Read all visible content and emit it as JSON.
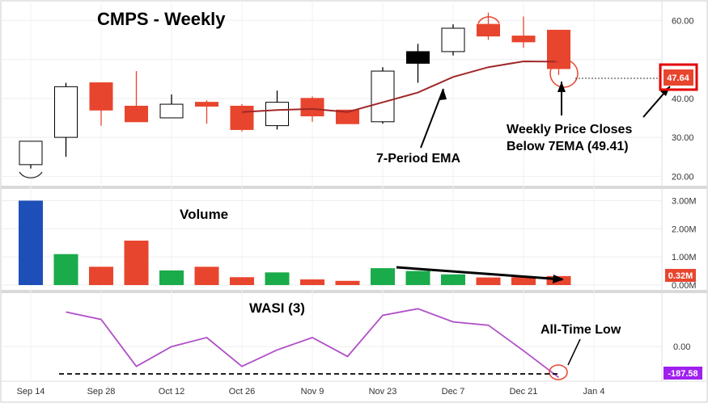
{
  "chart_data": {
    "type": "candlestick",
    "title": "CMPS - Weekly",
    "x_ticks": [
      "Sep 14",
      "Sep 28",
      "Oct 12",
      "Oct 26",
      "Nov 9",
      "Nov 23",
      "Dec 7",
      "Dec 21",
      "Jan 4"
    ],
    "price_panel": {
      "y_ticks": [
        "60.00",
        "40.00",
        "30.00",
        "20.00"
      ],
      "ylim": [
        18,
        64
      ],
      "candles": [
        {
          "date": "Sep 14",
          "open": 23,
          "high": 29,
          "low": 22,
          "close": 29
        },
        {
          "date": "Sep 21",
          "open": 30,
          "high": 44,
          "low": 25,
          "close": 43
        },
        {
          "date": "Sep 28",
          "open": 44,
          "high": 44,
          "low": 33,
          "close": 37
        },
        {
          "date": "Oct 5",
          "open": 38,
          "high": 47,
          "low": 34,
          "close": 34
        },
        {
          "date": "Oct 12",
          "open": 35,
          "high": 41,
          "low": 35,
          "close": 38.5
        },
        {
          "date": "Oct 19",
          "open": 39,
          "high": 39.5,
          "low": 33.5,
          "close": 38
        },
        {
          "date": "Oct 26",
          "open": 38,
          "high": 38.5,
          "low": 31.5,
          "close": 32
        },
        {
          "date": "Nov 2",
          "open": 33,
          "high": 42,
          "low": 32,
          "close": 39
        },
        {
          "date": "Nov 9",
          "open": 40,
          "high": 40.5,
          "low": 34,
          "close": 35.5
        },
        {
          "date": "Nov 16",
          "open": 37,
          "high": 37,
          "low": 33.5,
          "close": 33.5
        },
        {
          "date": "Nov 23",
          "open": 34,
          "high": 48,
          "low": 33.5,
          "close": 47
        },
        {
          "date": "Nov 30",
          "open": 49,
          "high": 54,
          "low": 44,
          "close": 52
        },
        {
          "date": "Dec 7",
          "open": 52,
          "high": 59,
          "low": 51,
          "close": 58
        },
        {
          "date": "Dec 14",
          "open": 59,
          "high": 62,
          "low": 55,
          "close": 56
        },
        {
          "date": "Dec 21",
          "open": 56,
          "high": 61,
          "low": 53,
          "close": 54.5
        },
        {
          "date": "Dec 28",
          "open": 57.5,
          "high": 57.5,
          "low": 46,
          "close": 47.64
        }
      ],
      "ema_label": "7-Period EMA",
      "ema": [
        null,
        null,
        null,
        null,
        null,
        null,
        36.5,
        37,
        37.3,
        36.5,
        39,
        41.5,
        45.5,
        48,
        49.5,
        49.41
      ],
      "last_price_badge": "47.64"
    },
    "volume_panel": {
      "title": "Volume",
      "y_ticks": [
        "3.00M",
        "2.00M",
        "1.00M",
        "0.00M"
      ],
      "ylim": [
        0,
        3.3
      ],
      "values": [
        3.0,
        1.1,
        0.65,
        1.58,
        0.52,
        0.65,
        0.28,
        0.45,
        0.2,
        0.15,
        0.6,
        0.5,
        0.38,
        0.27,
        0.28,
        0.32
      ],
      "colors": [
        "blue",
        "green",
        "red",
        "red",
        "green",
        "red",
        "red",
        "green",
        "red",
        "red",
        "green",
        "green",
        "green",
        "red",
        "red",
        "red"
      ],
      "last_badge": "0.32M"
    },
    "wasi_panel": {
      "title": "WASI (3)",
      "y_ticks": [
        "0.00"
      ],
      "ylim": [
        -200,
        310
      ],
      "values": [
        null,
        210,
        165,
        -120,
        0,
        55,
        -120,
        -20,
        55,
        -60,
        190,
        230,
        150,
        130,
        -25,
        -187.58
      ],
      "last_badge": "-187.58"
    },
    "annotations": {
      "ema_note": "7-Period EMA",
      "close_note_line1": "Weekly Price Closes",
      "close_note_line2": "Below 7EMA (49.41)",
      "low_note": "All-Time Low"
    },
    "colors": {
      "up_candle": "#ffffff",
      "down_candle": "#e8452e",
      "black_candle": "#000000",
      "ema_line": "#a02828",
      "vol_green": "#1aab4b",
      "vol_red": "#e8452e",
      "vol_blue": "#1e4fb8",
      "wasi_line": "#b04fc8",
      "price_badge": "#e8452e",
      "wasi_badge": "#a020f0"
    }
  }
}
